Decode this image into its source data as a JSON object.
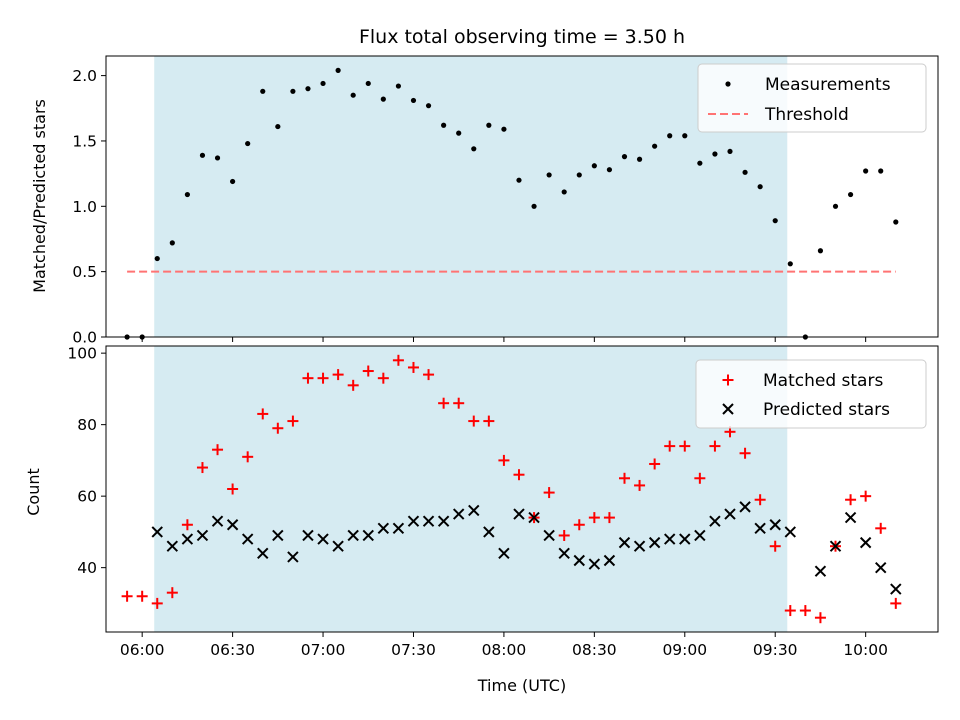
{
  "chart_data": [
    {
      "type": "scatter",
      "title": "Flux total observing time = 3.50 h",
      "xlabel": "",
      "ylabel": "Matched/Predicted stars",
      "xlim": [
        "05:48",
        "10:24"
      ],
      "ylim": [
        0,
        2.15
      ],
      "yticks": [
        "0.0",
        "0.5",
        "1.0",
        "1.5",
        "2.0"
      ],
      "shaded_interval": [
        "06:04",
        "09:34"
      ],
      "shade_color": "#add8e6",
      "legend_position": "top-right",
      "series": [
        {
          "name": "Measurements",
          "marker": "dot",
          "color": "#000000",
          "points": [
            [
              "05:55",
              0.0
            ],
            [
              "06:00",
              0.0
            ],
            [
              "06:05",
              0.6
            ],
            [
              "06:10",
              0.72
            ],
            [
              "06:15",
              1.09
            ],
            [
              "06:20",
              1.39
            ],
            [
              "06:25",
              1.37
            ],
            [
              "06:30",
              1.19
            ],
            [
              "06:35",
              1.48
            ],
            [
              "06:40",
              1.88
            ],
            [
              "06:45",
              1.61
            ],
            [
              "06:50",
              1.88
            ],
            [
              "06:55",
              1.9
            ],
            [
              "07:00",
              1.94
            ],
            [
              "07:05",
              2.04
            ],
            [
              "07:10",
              1.85
            ],
            [
              "07:15",
              1.94
            ],
            [
              "07:20",
              1.82
            ],
            [
              "07:25",
              1.92
            ],
            [
              "07:30",
              1.81
            ],
            [
              "07:35",
              1.77
            ],
            [
              "07:40",
              1.62
            ],
            [
              "07:45",
              1.56
            ],
            [
              "07:50",
              1.44
            ],
            [
              "07:55",
              1.62
            ],
            [
              "08:00",
              1.59
            ],
            [
              "08:05",
              1.2
            ],
            [
              "08:10",
              1.0
            ],
            [
              "08:15",
              1.24
            ],
            [
              "08:20",
              1.11
            ],
            [
              "08:25",
              1.24
            ],
            [
              "08:30",
              1.31
            ],
            [
              "08:35",
              1.28
            ],
            [
              "08:40",
              1.38
            ],
            [
              "08:45",
              1.36
            ],
            [
              "08:50",
              1.46
            ],
            [
              "08:55",
              1.54
            ],
            [
              "09:00",
              1.54
            ],
            [
              "09:05",
              1.33
            ],
            [
              "09:10",
              1.4
            ],
            [
              "09:15",
              1.42
            ],
            [
              "09:20",
              1.26
            ],
            [
              "09:25",
              1.15
            ],
            [
              "09:30",
              0.89
            ],
            [
              "09:35",
              0.56
            ],
            [
              "09:40",
              0.0
            ],
            [
              "09:45",
              0.66
            ],
            [
              "09:50",
              1.0
            ],
            [
              "09:55",
              1.09
            ],
            [
              "10:00",
              1.27
            ],
            [
              "10:05",
              1.27
            ],
            [
              "10:10",
              0.88
            ]
          ]
        },
        {
          "name": "Threshold",
          "marker": "dashed-line",
          "color": "#ff7373",
          "points": [
            [
              "05:55",
              0.5
            ],
            [
              "10:10",
              0.5
            ]
          ]
        }
      ]
    },
    {
      "type": "scatter",
      "title": "",
      "xlabel": "Time (UTC)",
      "ylabel": "Count",
      "xlim": [
        "05:48",
        "10:24"
      ],
      "ylim": [
        22,
        102
      ],
      "yticks": [
        "40",
        "60",
        "80",
        "100"
      ],
      "xticks": [
        "06:00",
        "06:30",
        "07:00",
        "07:30",
        "08:00",
        "08:30",
        "09:00",
        "09:30",
        "10:00"
      ],
      "shaded_interval": [
        "06:04",
        "09:34"
      ],
      "shade_color": "#add8e6",
      "legend_position": "top-right",
      "series": [
        {
          "name": "Matched stars",
          "marker": "plus",
          "color": "#ff0000",
          "points": [
            [
              "05:55",
              32
            ],
            [
              "06:00",
              32
            ],
            [
              "06:05",
              30
            ],
            [
              "06:10",
              33
            ],
            [
              "06:15",
              52
            ],
            [
              "06:20",
              68
            ],
            [
              "06:25",
              73
            ],
            [
              "06:30",
              62
            ],
            [
              "06:35",
              71
            ],
            [
              "06:40",
              83
            ],
            [
              "06:45",
              79
            ],
            [
              "06:50",
              81
            ],
            [
              "06:55",
              93
            ],
            [
              "07:00",
              93
            ],
            [
              "07:05",
              94
            ],
            [
              "07:10",
              91
            ],
            [
              "07:15",
              95
            ],
            [
              "07:20",
              93
            ],
            [
              "07:25",
              98
            ],
            [
              "07:30",
              96
            ],
            [
              "07:35",
              94
            ],
            [
              "07:40",
              86
            ],
            [
              "07:45",
              86
            ],
            [
              "07:50",
              81
            ],
            [
              "07:55",
              81
            ],
            [
              "08:00",
              70
            ],
            [
              "08:05",
              66
            ],
            [
              "08:10",
              54
            ],
            [
              "08:15",
              61
            ],
            [
              "08:20",
              49
            ],
            [
              "08:25",
              52
            ],
            [
              "08:30",
              54
            ],
            [
              "08:35",
              54
            ],
            [
              "08:40",
              65
            ],
            [
              "08:45",
              63
            ],
            [
              "08:50",
              69
            ],
            [
              "08:55",
              74
            ],
            [
              "09:00",
              74
            ],
            [
              "09:05",
              65
            ],
            [
              "09:10",
              74
            ],
            [
              "09:15",
              78
            ],
            [
              "09:20",
              72
            ],
            [
              "09:25",
              59
            ],
            [
              "09:30",
              46
            ],
            [
              "09:35",
              28
            ],
            [
              "09:40",
              28
            ],
            [
              "09:45",
              26
            ],
            [
              "09:50",
              46
            ],
            [
              "09:55",
              59
            ],
            [
              "10:00",
              60
            ],
            [
              "10:05",
              51
            ],
            [
              "10:10",
              30
            ]
          ]
        },
        {
          "name": "Predicted stars",
          "marker": "x",
          "color": "#000000",
          "points": [
            [
              "06:05",
              50
            ],
            [
              "06:10",
              46
            ],
            [
              "06:15",
              48
            ],
            [
              "06:20",
              49
            ],
            [
              "06:25",
              53
            ],
            [
              "06:30",
              52
            ],
            [
              "06:35",
              48
            ],
            [
              "06:40",
              44
            ],
            [
              "06:45",
              49
            ],
            [
              "06:50",
              43
            ],
            [
              "06:55",
              49
            ],
            [
              "07:00",
              48
            ],
            [
              "07:05",
              46
            ],
            [
              "07:10",
              49
            ],
            [
              "07:15",
              49
            ],
            [
              "07:20",
              51
            ],
            [
              "07:25",
              51
            ],
            [
              "07:30",
              53
            ],
            [
              "07:35",
              53
            ],
            [
              "07:40",
              53
            ],
            [
              "07:45",
              55
            ],
            [
              "07:50",
              56
            ],
            [
              "07:55",
              50
            ],
            [
              "08:00",
              44
            ],
            [
              "08:05",
              55
            ],
            [
              "08:10",
              54
            ],
            [
              "08:15",
              49
            ],
            [
              "08:20",
              44
            ],
            [
              "08:25",
              42
            ],
            [
              "08:30",
              41
            ],
            [
              "08:35",
              42
            ],
            [
              "08:40",
              47
            ],
            [
              "08:45",
              46
            ],
            [
              "08:50",
              47
            ],
            [
              "08:55",
              48
            ],
            [
              "09:00",
              48
            ],
            [
              "09:05",
              49
            ],
            [
              "09:10",
              53
            ],
            [
              "09:15",
              55
            ],
            [
              "09:20",
              57
            ],
            [
              "09:25",
              51
            ],
            [
              "09:30",
              52
            ],
            [
              "09:35",
              50
            ],
            [
              "09:45",
              39
            ],
            [
              "09:50",
              46
            ],
            [
              "09:55",
              54
            ],
            [
              "10:00",
              47
            ],
            [
              "10:05",
              40
            ],
            [
              "10:10",
              34
            ]
          ]
        }
      ]
    }
  ]
}
